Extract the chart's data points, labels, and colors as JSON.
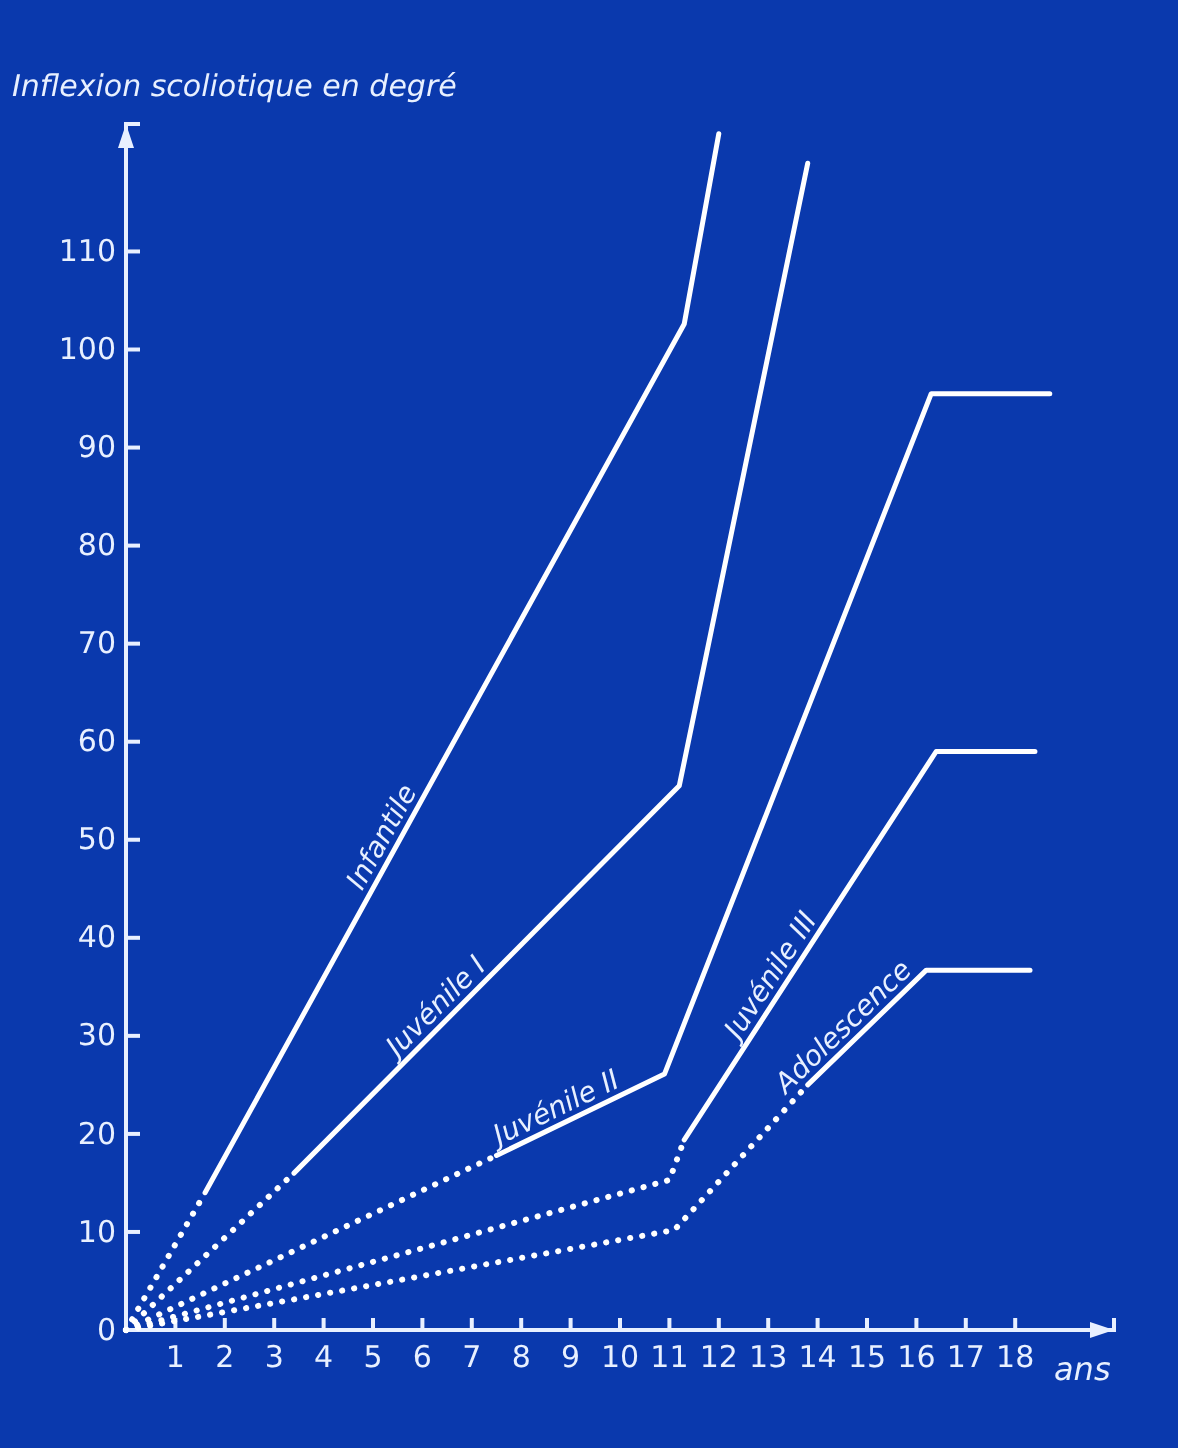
{
  "chart_data": {
    "type": "line",
    "ylabel": "Inflexion scoliotique en degré",
    "xlabel": "ans",
    "xlim": [
      0,
      20
    ],
    "xticks": [
      1,
      2,
      3,
      4,
      5,
      6,
      7,
      8,
      9,
      10,
      11,
      12,
      13,
      14,
      15,
      16,
      17,
      18
    ],
    "ylim": [
      0,
      123
    ],
    "yticks": [
      0,
      10,
      20,
      30,
      40,
      50,
      60,
      70,
      80,
      90,
      100,
      110
    ],
    "grid": false,
    "legend": false,
    "marker": "none",
    "series": [
      {
        "line_style": "dotted",
        "color": "#ffffff",
        "x": [
          0,
          1.6
        ],
        "values": [
          0,
          14
        ]
      },
      {
        "name": "Infantile",
        "line_style": "solid",
        "color": "#ffffff",
        "x": [
          1.6,
          11.3,
          12
        ],
        "values": [
          14,
          102.6,
          122
        ]
      },
      {
        "line_style": "dotted",
        "color": "#ffffff",
        "x": [
          0,
          3.4
        ],
        "values": [
          0,
          16
        ]
      },
      {
        "name": "Juvénile I",
        "line_style": "solid",
        "color": "#ffffff",
        "x": [
          3.4,
          11.2,
          13.8
        ],
        "values": [
          16,
          55.5,
          119
        ]
      },
      {
        "line_style": "dotted",
        "color": "#ffffff",
        "x": [
          0,
          7.5
        ],
        "values": [
          0,
          17.8
        ]
      },
      {
        "name": "Juvénile II",
        "line_style": "solid",
        "color": "#ffffff",
        "x": [
          7.5,
          10.9,
          16.3,
          18.7
        ],
        "values": [
          17.8,
          26.1,
          95.5,
          95.5
        ]
      },
      {
        "line_style": "dotted",
        "color": "#ffffff",
        "x": [
          0,
          11,
          11.3
        ],
        "values": [
          0,
          15.3,
          19.4
        ]
      },
      {
        "name": "Juvénile III",
        "line_style": "solid",
        "color": "#ffffff",
        "x": [
          11.3,
          16.4,
          18.4
        ],
        "values": [
          19.4,
          59,
          59
        ]
      },
      {
        "line_style": "dotted",
        "color": "#ffffff",
        "x": [
          0,
          11.1,
          13.8
        ],
        "values": [
          0,
          10.2,
          25
        ]
      },
      {
        "name": "Adolescence",
        "line_style": "solid",
        "color": "#ffffff",
        "x": [
          13.8,
          16.2,
          18.3
        ],
        "values": [
          25,
          36.7,
          36.7
        ]
      }
    ]
  }
}
